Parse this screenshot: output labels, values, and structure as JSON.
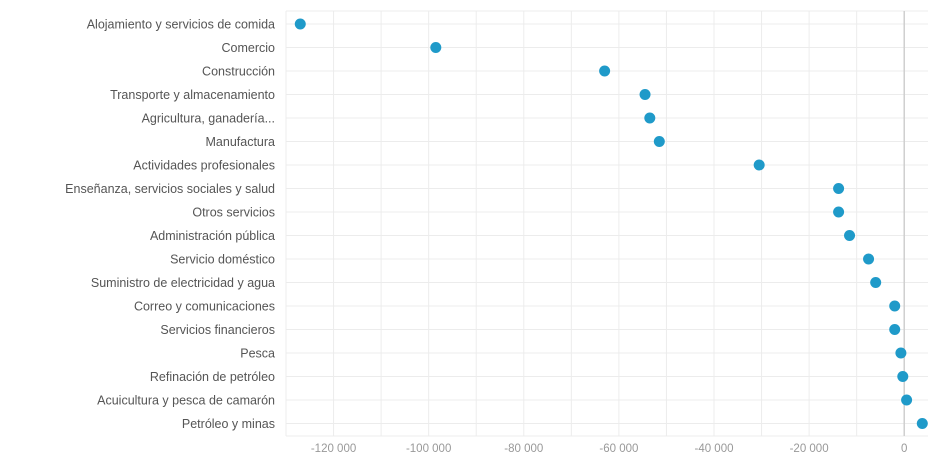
{
  "chart_data": {
    "type": "scatter",
    "orientation": "horizontal-dot-plot",
    "categories": [
      "Alojamiento y servicios de comida",
      "Comercio",
      "Construcción",
      "Transporte y almacenamiento",
      "Agricultura, ganadería...",
      "Manufactura",
      "Actividades profesionales",
      "Enseñanza, servicios sociales y salud",
      "Otros servicios",
      "Administración pública",
      "Servicio doméstico",
      "Suministro de electricidad y agua",
      "Correo y comunicaciones",
      "Servicios financieros",
      "Pesca",
      "Refinación de petróleo",
      "Acuicultura y pesca de camarón",
      "Petróleo y minas"
    ],
    "values": [
      -127000,
      -98500,
      -63000,
      -54500,
      -53500,
      -51500,
      -30500,
      -13800,
      -13800,
      -11500,
      -7500,
      -6000,
      -2000,
      -2000,
      -700,
      -300,
      500,
      3800
    ],
    "xlim": [
      -130000,
      5000
    ],
    "xticks": [
      -120000,
      -100000,
      -80000,
      -60000,
      -40000,
      -20000,
      0
    ],
    "xtick_labels": [
      "-120 000",
      "-100 000",
      "-80 000",
      "-60 000",
      "-40 000",
      "-20 000",
      "0"
    ],
    "title": "",
    "xlabel": "",
    "ylabel": "",
    "grid": true,
    "marker_color": "#1f9ac9"
  }
}
